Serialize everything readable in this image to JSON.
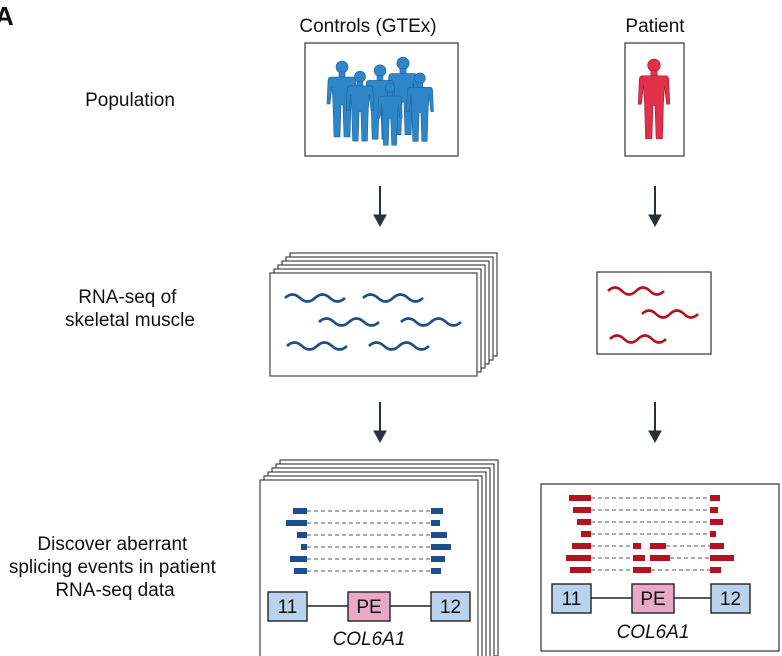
{
  "panel_letter": "A",
  "columns": {
    "controls": "Controls (GTEx)",
    "patient": "Patient"
  },
  "rows": {
    "population": [
      "Population"
    ],
    "rnaseq": [
      "RNA-seq of",
      "skeletal muscle"
    ],
    "discover": [
      "Discover aberrant",
      "splicing events in patient",
      "RNA-seq data"
    ]
  },
  "gene": {
    "exon_left": "11",
    "pseudoexon": "PE",
    "exon_right": "12",
    "name": "COL6A1"
  },
  "colors": {
    "control": "#1f4e8c",
    "control_figure": "#2e86c8",
    "patient": "#b3121f",
    "patient_figure": "#e0304a",
    "exon_fill": "#b9d3ec",
    "pe_fill": "#e8a9c6",
    "arrow": "#263238"
  }
}
